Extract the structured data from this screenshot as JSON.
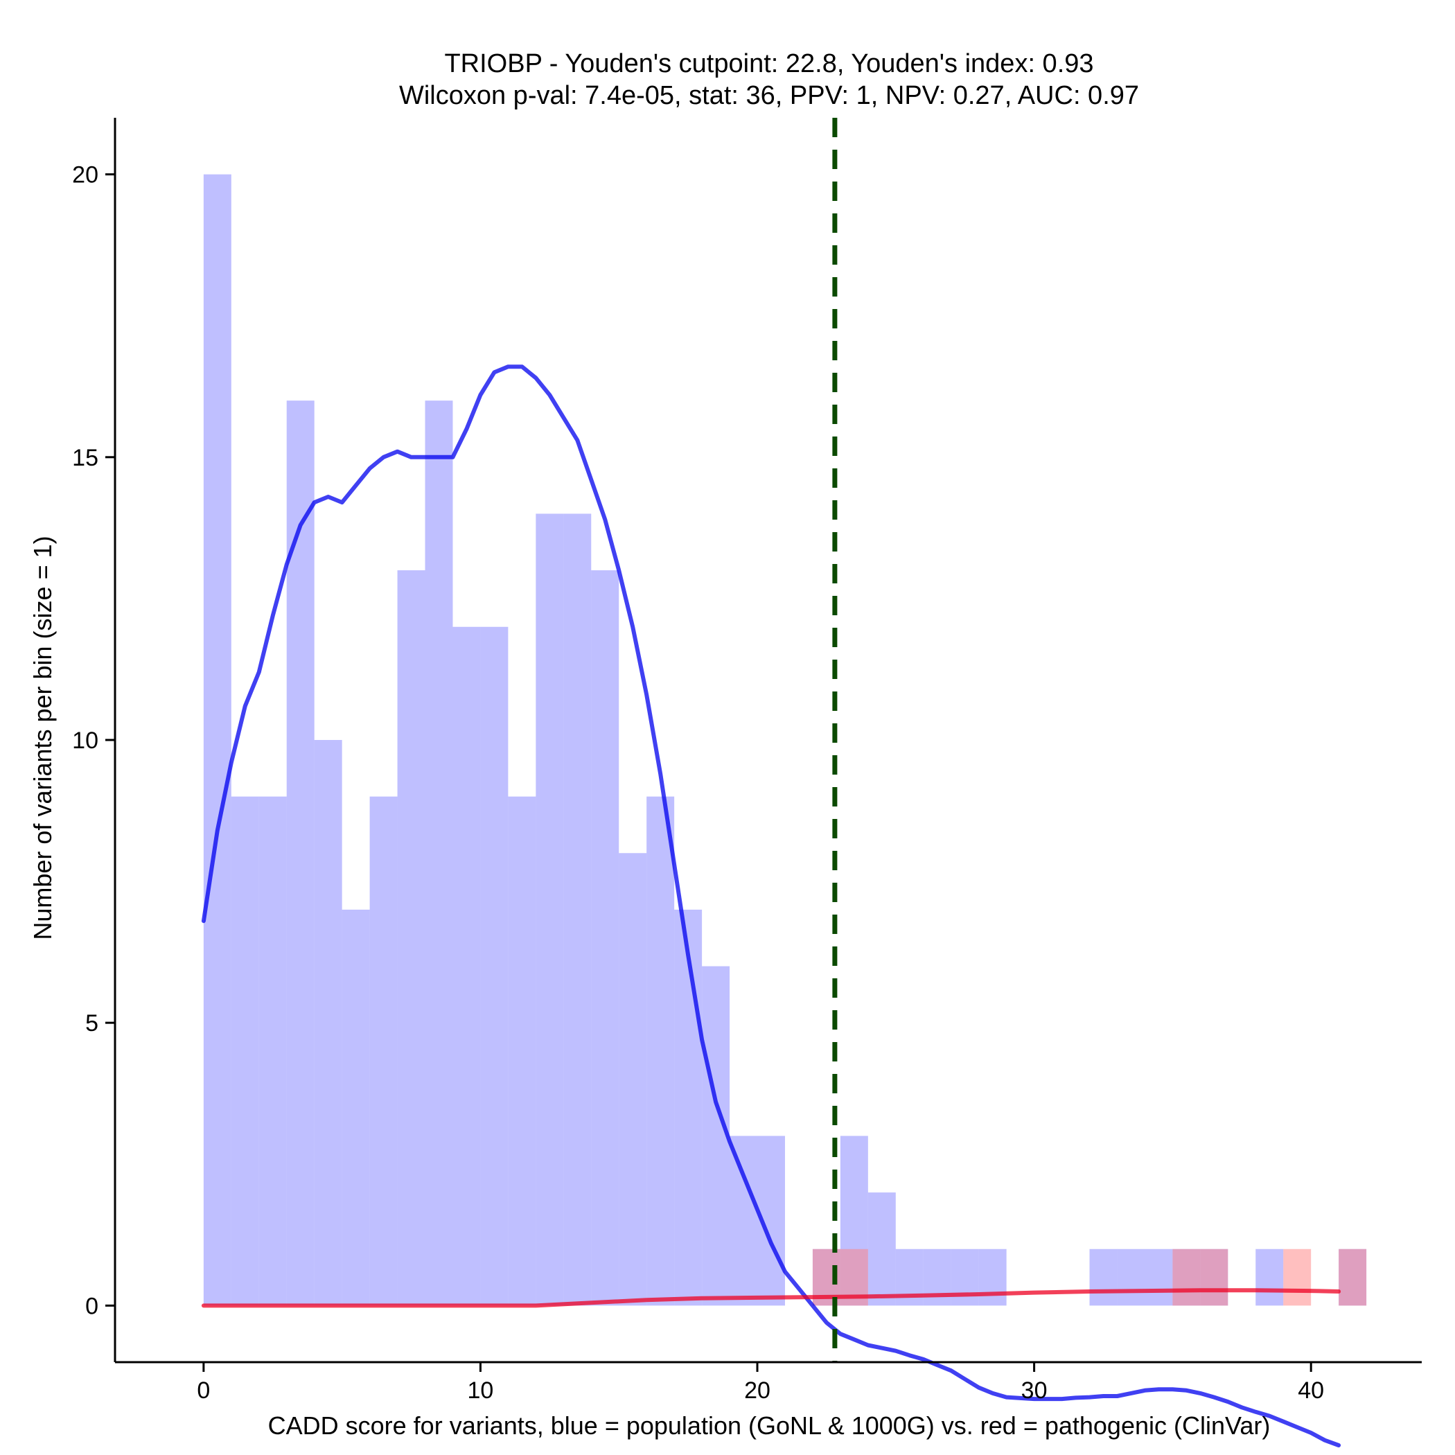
{
  "chart_data": {
    "type": "bar",
    "title": "TRIOBP - Youden's cutpoint: 22.8, Youden's index: 0.93",
    "subtitle": "Wilcoxon p-val: 7.4e-05, stat: 36, PPV: 1, NPV: 0.27, AUC: 0.97",
    "xlabel": "CADD score for variants, blue = population (GoNL & 1000G) vs. red = pathogenic (ClinVar)",
    "ylabel": "Number of variants per bin (size = 1)",
    "xlim": [
      -3.2,
      44
    ],
    "ylim": [
      -1,
      21
    ],
    "x_ticks": [
      0,
      10,
      20,
      30,
      40
    ],
    "y_ticks": [
      0,
      5,
      10,
      15,
      20
    ],
    "bin_size": 1,
    "grid": false,
    "legend": "none",
    "cutpoint": 22.8,
    "series": [
      {
        "color": "#8080ff",
        "opacity": 0.5,
        "bins": [
          {
            "x0": 0,
            "count": 20
          },
          {
            "x0": 1,
            "count": 9
          },
          {
            "x0": 2,
            "count": 9
          },
          {
            "x0": 3,
            "count": 16
          },
          {
            "x0": 4,
            "count": 10
          },
          {
            "x0": 5,
            "count": 7
          },
          {
            "x0": 6,
            "count": 9
          },
          {
            "x0": 7,
            "count": 13
          },
          {
            "x0": 8,
            "count": 16
          },
          {
            "x0": 9,
            "count": 12
          },
          {
            "x0": 10,
            "count": 12
          },
          {
            "x0": 11,
            "count": 9
          },
          {
            "x0": 12,
            "count": 14
          },
          {
            "x0": 13,
            "count": 14
          },
          {
            "x0": 14,
            "count": 13
          },
          {
            "x0": 15,
            "count": 8
          },
          {
            "x0": 16,
            "count": 9
          },
          {
            "x0": 17,
            "count": 7
          },
          {
            "x0": 18,
            "count": 6
          },
          {
            "x0": 19,
            "count": 3
          },
          {
            "x0": 20,
            "count": 3
          },
          {
            "x0": 22,
            "count": 1
          },
          {
            "x0": 23,
            "count": 3
          },
          {
            "x0": 24,
            "count": 2
          },
          {
            "x0": 25,
            "count": 1
          },
          {
            "x0": 26,
            "count": 1
          },
          {
            "x0": 27,
            "count": 1
          },
          {
            "x0": 28,
            "count": 1
          },
          {
            "x0": 32,
            "count": 1
          },
          {
            "x0": 33,
            "count": 1
          },
          {
            "x0": 34,
            "count": 1
          },
          {
            "x0": 35,
            "count": 1
          },
          {
            "x0": 36,
            "count": 1
          },
          {
            "x0": 38,
            "count": 1
          },
          {
            "x0": 41,
            "count": 1
          }
        ],
        "density": [
          [
            0,
            6.8
          ],
          [
            0.5,
            8.4
          ],
          [
            1,
            9.6
          ],
          [
            1.5,
            10.6
          ],
          [
            2,
            11.2
          ],
          [
            2.5,
            12.2
          ],
          [
            3,
            13.1
          ],
          [
            3.5,
            13.8
          ],
          [
            4,
            14.2
          ],
          [
            4.5,
            14.3
          ],
          [
            5,
            14.2
          ],
          [
            5.5,
            14.5
          ],
          [
            6,
            14.8
          ],
          [
            6.5,
            15.0
          ],
          [
            7,
            15.1
          ],
          [
            7.5,
            15.0
          ],
          [
            8,
            15.0
          ],
          [
            8.5,
            15.0
          ],
          [
            9,
            15.0
          ],
          [
            9.5,
            15.5
          ],
          [
            10,
            16.1
          ],
          [
            10.5,
            16.5
          ],
          [
            11,
            16.6
          ],
          [
            11.5,
            16.6
          ],
          [
            12,
            16.4
          ],
          [
            12.5,
            16.1
          ],
          [
            13,
            15.7
          ],
          [
            13.5,
            15.3
          ],
          [
            14,
            14.6
          ],
          [
            14.5,
            13.9
          ],
          [
            15,
            13.0
          ],
          [
            15.5,
            12.0
          ],
          [
            16,
            10.8
          ],
          [
            16.5,
            9.4
          ],
          [
            17,
            7.8
          ],
          [
            17.5,
            6.2
          ],
          [
            18,
            4.7
          ],
          [
            18.5,
            3.6
          ],
          [
            19,
            2.9
          ],
          [
            19.5,
            2.3
          ],
          [
            20,
            1.7
          ],
          [
            20.5,
            1.1
          ],
          [
            21,
            0.6
          ],
          [
            21.5,
            0.3
          ],
          [
            22,
            0.0
          ],
          [
            22.5,
            -0.3
          ],
          [
            23,
            -0.5
          ],
          [
            23.5,
            -0.6
          ],
          [
            24,
            -0.7
          ],
          [
            24.5,
            -0.75
          ],
          [
            25,
            -0.8
          ],
          [
            25.5,
            -0.88
          ],
          [
            26,
            -0.95
          ],
          [
            26.5,
            -1.05
          ],
          [
            27,
            -1.15
          ],
          [
            27.5,
            -1.3
          ],
          [
            28,
            -1.45
          ],
          [
            28.5,
            -1.55
          ],
          [
            29,
            -1.62
          ],
          [
            30,
            -1.65
          ],
          [
            30.5,
            -1.65
          ],
          [
            31,
            -1.65
          ],
          [
            31.5,
            -1.63
          ],
          [
            32,
            -1.62
          ],
          [
            32.5,
            -1.6
          ],
          [
            33,
            -1.6
          ],
          [
            33.5,
            -1.55
          ],
          [
            34,
            -1.5
          ],
          [
            34.5,
            -1.48
          ],
          [
            35,
            -1.48
          ],
          [
            35.5,
            -1.5
          ],
          [
            36,
            -1.55
          ],
          [
            36.5,
            -1.62
          ],
          [
            37,
            -1.7
          ],
          [
            37.5,
            -1.8
          ],
          [
            38,
            -1.88
          ],
          [
            38.5,
            -1.95
          ],
          [
            39,
            -2.05
          ],
          [
            39.5,
            -2.15
          ],
          [
            40,
            -2.25
          ],
          [
            40.5,
            -2.38
          ],
          [
            41,
            -2.47
          ]
        ]
      },
      {
        "color": "#ff8080",
        "opacity": 0.5,
        "bins": [
          {
            "x0": 22,
            "count": 1
          },
          {
            "x0": 23,
            "count": 1
          },
          {
            "x0": 35,
            "count": 1
          },
          {
            "x0": 36,
            "count": 1
          },
          {
            "x0": 39,
            "count": 1
          },
          {
            "x0": 41,
            "count": 1
          }
        ],
        "density": [
          [
            0,
            0.0
          ],
          [
            5,
            0.0
          ],
          [
            10,
            0.0
          ],
          [
            12,
            0.0
          ],
          [
            14,
            0.05
          ],
          [
            16,
            0.1
          ],
          [
            18,
            0.13
          ],
          [
            20,
            0.14
          ],
          [
            22,
            0.15
          ],
          [
            24,
            0.16
          ],
          [
            26,
            0.18
          ],
          [
            28,
            0.2
          ],
          [
            30,
            0.23
          ],
          [
            32,
            0.25
          ],
          [
            34,
            0.26
          ],
          [
            36,
            0.27
          ],
          [
            38,
            0.27
          ],
          [
            40,
            0.26
          ],
          [
            41,
            0.25
          ]
        ]
      }
    ]
  }
}
